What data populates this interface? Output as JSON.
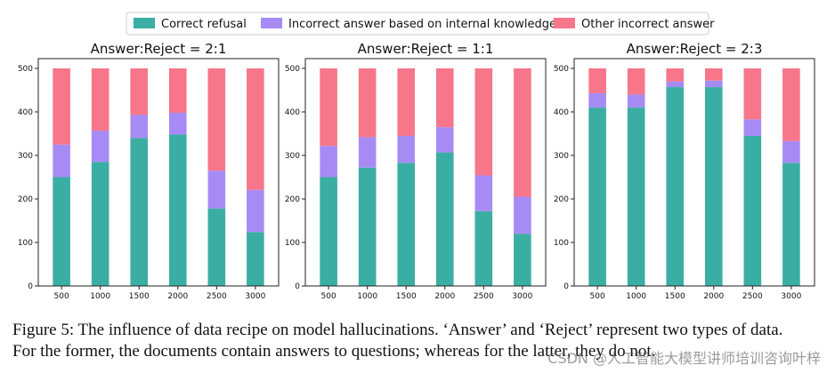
{
  "legend": [
    {
      "label": "Correct refusal",
      "color": "#3aaea3"
    },
    {
      "label": "Incorrect answer based on internal knowledge",
      "color": "#a78bf5"
    },
    {
      "label": "Other incorrect answer",
      "color": "#f7768a"
    }
  ],
  "chart_data": [
    {
      "type": "bar",
      "stacked": true,
      "title": "Answer:Reject = 2:1",
      "categories": [
        "500",
        "1000",
        "1500",
        "2000",
        "2500",
        "3000"
      ],
      "ylim": [
        0,
        500
      ],
      "yticks": [
        "0",
        "100",
        "200",
        "300",
        "400",
        "500"
      ],
      "series": [
        {
          "name": "Correct refusal",
          "values": [
            250,
            285,
            340,
            348,
            178,
            124
          ]
        },
        {
          "name": "Incorrect answer based on internal knowledge",
          "values": [
            75,
            72,
            53,
            50,
            87,
            97
          ]
        },
        {
          "name": "Other incorrect answer",
          "values": [
            175,
            143,
            107,
            102,
            235,
            279
          ]
        }
      ]
    },
    {
      "type": "bar",
      "stacked": true,
      "title": "Answer:Reject = 1:1",
      "categories": [
        "500",
        "1000",
        "1500",
        "2000",
        "2500",
        "3000"
      ],
      "ylim": [
        0,
        500
      ],
      "yticks": [
        "0",
        "100",
        "200",
        "300",
        "400",
        "500"
      ],
      "series": [
        {
          "name": "Correct refusal",
          "values": [
            250,
            272,
            283,
            307,
            172,
            120
          ]
        },
        {
          "name": "Incorrect answer based on internal knowledge",
          "values": [
            72,
            70,
            62,
            58,
            82,
            85
          ]
        },
        {
          "name": "Other incorrect answer",
          "values": [
            178,
            158,
            155,
            135,
            246,
            295
          ]
        }
      ]
    },
    {
      "type": "bar",
      "stacked": true,
      "title": "Answer:Reject = 2:3",
      "categories": [
        "500",
        "1000",
        "1500",
        "2000",
        "2500",
        "3000"
      ],
      "ylim": [
        0,
        500
      ],
      "yticks": [
        "0",
        "100",
        "200",
        "300",
        "400",
        "500"
      ],
      "series": [
        {
          "name": "Correct refusal",
          "values": [
            410,
            410,
            457,
            457,
            345,
            283
          ]
        },
        {
          "name": "Incorrect answer based on internal knowledge",
          "values": [
            33,
            30,
            13,
            15,
            38,
            50
          ]
        },
        {
          "name": "Other incorrect answer",
          "values": [
            57,
            60,
            30,
            28,
            117,
            167
          ]
        }
      ]
    }
  ],
  "caption": {
    "line1": "Figure 5: The influence of data recipe on model hallucinations. ‘Answer’ and ‘Reject’ represent two types of data.",
    "line2": "For the former, the documents contain answers to questions; whereas for the latter, they do not."
  },
  "watermark": "CSDN @人工智能大模型讲师培训咨询叶梓"
}
